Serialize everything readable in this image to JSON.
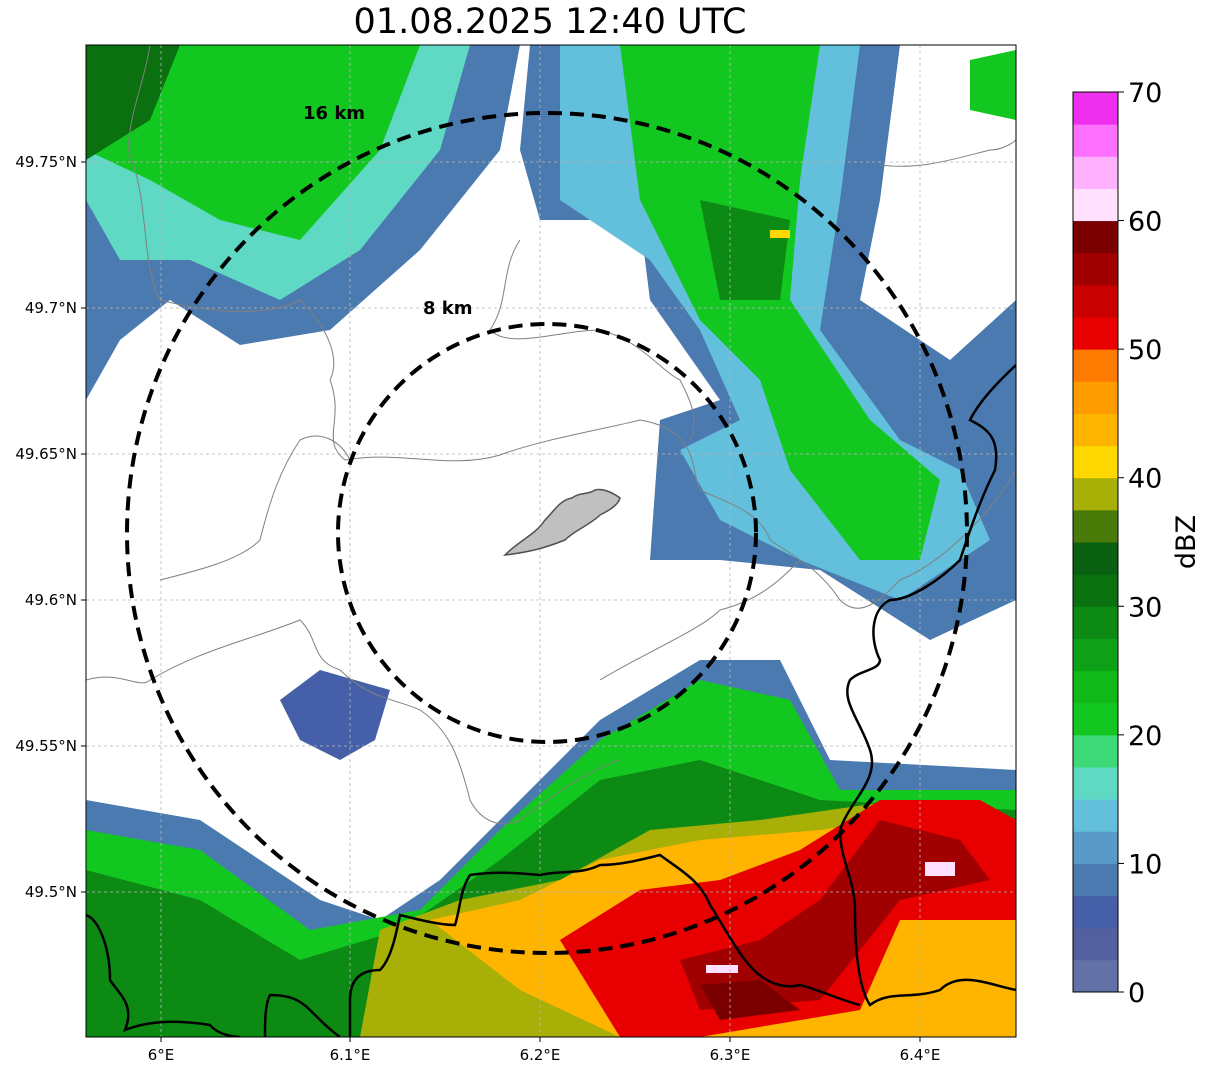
{
  "title": "01.08.2025 12:40 UTC",
  "map": {
    "x_ticks": [
      "6°E",
      "6.1°E",
      "6.2°E",
      "6.3°E",
      "6.4°E"
    ],
    "y_ticks": [
      "49.75°N",
      "49.7°N",
      "49.65°N",
      "49.6°N",
      "49.55°N",
      "49.5°N"
    ],
    "range_rings": [
      {
        "label": "8 km",
        "radius_km": 8
      },
      {
        "label": "16 km",
        "radius_km": 16
      }
    ],
    "gridlines": true
  },
  "colorbar": {
    "label": "dBZ",
    "ticks": [
      "0",
      "10",
      "20",
      "30",
      "40",
      "50",
      "60",
      "70"
    ],
    "min": 0,
    "max": 70,
    "colors": [
      "#6272a8",
      "#5260a0",
      "#4560a8",
      "#4a7ab0",
      "#5a9ac8",
      "#62c0dc",
      "#5fd8c4",
      "#3dd878",
      "#12c820",
      "#10b818",
      "#0ea016",
      "#0d8a14",
      "#0a7010",
      "#086010",
      "#4a7a08",
      "#a8b008",
      "#ffd800",
      "#ffb400",
      "#ff9c00",
      "#ff7a00",
      "#e80000",
      "#c80000",
      "#a00000",
      "#7a0000",
      "#ffe0ff",
      "#ffb0ff",
      "#ff70ff",
      "#ee30ee"
    ]
  }
}
